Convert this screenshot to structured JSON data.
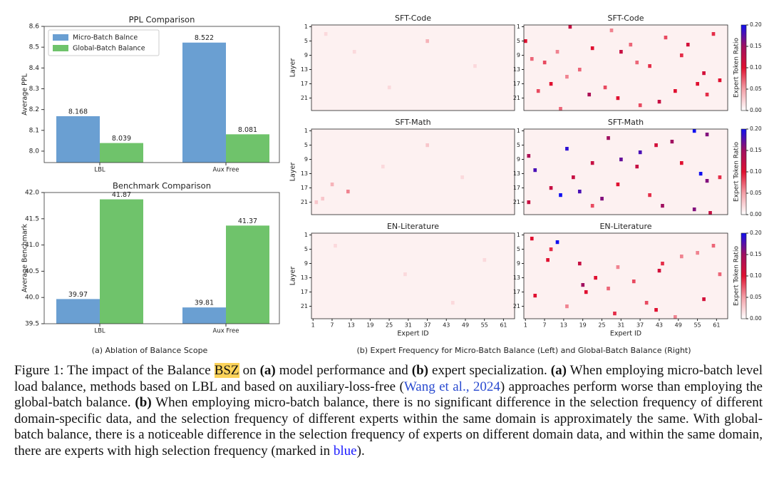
{
  "chart_data": [
    {
      "type": "bar",
      "title": "PPL Comparison",
      "ylabel": "Average PPL",
      "categories": [
        "LBL",
        "Aux Free"
      ],
      "series": [
        {
          "name": "Micro-Batch Balnce",
          "color": "#6a9fd2",
          "values": [
            8.168,
            8.522
          ]
        },
        {
          "name": "Global-Batch Balance",
          "color": "#6fc36b",
          "values": [
            8.039,
            8.081
          ]
        }
      ],
      "ylim": [
        7.945,
        8.6
      ],
      "yticks": [
        {
          "value": 8.0,
          "label": "8.0"
        },
        8.1,
        8.2,
        8.3,
        8.4,
        8.5,
        8.6
      ],
      "legend": "upper left"
    },
    {
      "type": "bar",
      "title": "Benchmark Comparison",
      "ylabel": "Average Benchmark",
      "categories": [
        "LBL",
        "Aux Free"
      ],
      "series": [
        {
          "color": "#6a9fd2",
          "values": [
            39.97,
            39.81
          ]
        },
        {
          "color": "#6fc36b",
          "values": [
            41.87,
            41.37
          ]
        }
      ],
      "ylim": [
        39.5,
        42.0
      ],
      "yticks": [
        39.5,
        {
          "value": 40.0,
          "label": "40.0"
        },
        40.5,
        {
          "value": 41.0,
          "label": "41.0"
        },
        41.5,
        {
          "value": 42.0,
          "label": "42.0"
        }
      ]
    },
    {
      "type": "heatmap",
      "title": "SFT-Code",
      "ylabel": "Layer",
      "xlim": [
        1,
        64
      ],
      "ylim": [
        1,
        24
      ],
      "yticks": [
        1,
        5,
        9,
        13,
        17,
        21
      ],
      "clim": [
        0,
        0.2
      ],
      "colors": [
        "#ffffff",
        "#f4a0a8",
        "#e01030",
        "#a01060",
        "#1010f0"
      ],
      "layers": [
        5,
        8,
        12,
        18,
        3
      ],
      "experts": [
        37,
        14,
        52,
        25,
        5
      ],
      "values": [
        0.04,
        0.02,
        0.02,
        0.02,
        0.02
      ]
    },
    {
      "type": "heatmap",
      "title": "SFT-Code",
      "xlim": [
        1,
        64
      ],
      "ylim": [
        1,
        24
      ],
      "yticks": [
        1,
        5,
        9,
        13,
        17,
        21
      ],
      "clim": [
        0,
        0.2
      ],
      "colors": [
        "#ffffff",
        "#f4a0a8",
        "#e01030",
        "#a01060",
        "#1010f0"
      ],
      "clabel": "Expert Token Ratio",
      "cticks": [
        {
          "value": 0,
          "label": "0.00"
        },
        {
          "value": 0.05,
          "label": "0.05"
        },
        {
          "value": 0.1,
          "label": "0.10"
        },
        {
          "value": 0.15,
          "label": "0.15"
        },
        {
          "value": 0.2,
          "label": "0.20"
        }
      ],
      "layers": [
        1,
        3,
        4,
        5,
        7,
        6,
        8,
        9,
        11,
        12,
        14,
        15,
        17,
        18,
        19,
        20,
        20,
        21,
        22,
        23,
        16,
        10,
        2,
        13,
        24,
        6,
        11,
        19,
        8,
        17
      ],
      "experts": [
        15,
        60,
        45,
        1,
        22,
        34,
        31,
        50,
        7,
        40,
        57,
        14,
        9,
        26,
        48,
        21,
        58,
        30,
        43,
        37,
        62,
        3,
        28,
        18,
        12,
        52,
        36,
        5,
        11,
        55
      ],
      "values": [
        0.12,
        0.09,
        0.08,
        0.1,
        0.1,
        0.07,
        0.12,
        0.09,
        0.08,
        0.09,
        0.11,
        0.06,
        0.1,
        0.08,
        0.1,
        0.14,
        0.09,
        0.1,
        0.12,
        0.08,
        0.1,
        0.07,
        0.06,
        0.07,
        0.07,
        0.11,
        0.07,
        0.08,
        0.06,
        0.1
      ]
    },
    {
      "type": "heatmap",
      "title": "SFT-Math",
      "ylabel": "Layer",
      "xlim": [
        1,
        64
      ],
      "ylim": [
        1,
        24
      ],
      "yticks": [
        1,
        5,
        9,
        13,
        17,
        21
      ],
      "clim": [
        0,
        0.2
      ],
      "colors": [
        "#ffffff",
        "#f4a0a8",
        "#e01030",
        "#a01060",
        "#1010f0"
      ],
      "layers": [
        5,
        16,
        18,
        20,
        11,
        14,
        21
      ],
      "experts": [
        37,
        7,
        12,
        4,
        23,
        48,
        2
      ],
      "values": [
        0.03,
        0.04,
        0.06,
        0.03,
        0.02,
        0.02,
        0.03
      ]
    },
    {
      "type": "heatmap",
      "title": "SFT-Math",
      "xlim": [
        1,
        64
      ],
      "ylim": [
        1,
        24
      ],
      "yticks": [
        1,
        5,
        9,
        13,
        17,
        21
      ],
      "clim": [
        0,
        0.2
      ],
      "colors": [
        "#ffffff",
        "#f4a0a8",
        "#e01030",
        "#a01060",
        "#1010f0"
      ],
      "clabel": "Expert Token Ratio",
      "cticks": [
        {
          "value": 0,
          "label": "0.00"
        },
        {
          "value": 0.05,
          "label": "0.05"
        },
        {
          "value": 0.1,
          "label": "0.10"
        },
        {
          "value": 0.15,
          "label": "0.15"
        },
        {
          "value": 0.2,
          "label": "0.20"
        }
      ],
      "layers": [
        1,
        2,
        3,
        4,
        6,
        7,
        8,
        9,
        10,
        11,
        12,
        13,
        14,
        15,
        17,
        18,
        19,
        20,
        21,
        22,
        23,
        24,
        5,
        16,
        19,
        10,
        22,
        14
      ],
      "experts": [
        54,
        58,
        27,
        47,
        14,
        37,
        2,
        31,
        22,
        36,
        4,
        56,
        16,
        58,
        9,
        18,
        12,
        25,
        2,
        44,
        54,
        59,
        42,
        30,
        40,
        50,
        22,
        62
      ],
      "values": [
        0.2,
        0.16,
        0.15,
        0.15,
        0.19,
        0.18,
        0.14,
        0.17,
        0.12,
        0.12,
        0.18,
        0.2,
        0.12,
        0.16,
        0.12,
        0.18,
        0.2,
        0.16,
        0.12,
        0.15,
        0.16,
        0.12,
        0.11,
        0.1,
        0.09,
        0.1,
        0.08,
        0.09
      ]
    },
    {
      "type": "heatmap",
      "title": "EN-Literature",
      "ylabel": "Layer",
      "xlabel": "Expert ID",
      "xlim": [
        1,
        64
      ],
      "ylim": [
        1,
        24
      ],
      "yticks": [
        1,
        5,
        9,
        13,
        17,
        21
      ],
      "xticks": [
        1,
        7,
        13,
        19,
        25,
        31,
        37,
        43,
        49,
        55,
        61
      ],
      "clim": [
        0,
        0.2
      ],
      "colors": [
        "#ffffff",
        "#f4a0a8",
        "#e01030",
        "#a01060",
        "#1010f0"
      ],
      "layers": [
        4,
        12,
        20,
        8
      ],
      "experts": [
        8,
        30,
        45,
        55
      ],
      "values": [
        0.02,
        0.02,
        0.02,
        0.02
      ]
    },
    {
      "type": "heatmap",
      "title": "EN-Literature",
      "xlabel": "Expert ID",
      "xlim": [
        1,
        64
      ],
      "ylim": [
        1,
        24
      ],
      "yticks": [
        1,
        5,
        9,
        13,
        17,
        21
      ],
      "xticks": [
        1,
        7,
        13,
        19,
        25,
        31,
        37,
        43,
        49,
        55,
        61
      ],
      "clim": [
        0,
        0.2
      ],
      "colors": [
        "#ffffff",
        "#f4a0a8",
        "#e01030",
        "#a01060",
        "#1010f0"
      ],
      "clabel": "Expert Token Ratio",
      "cticks": [
        {
          "value": 0,
          "label": "0.00"
        },
        {
          "value": 0.05,
          "label": "0.05"
        },
        {
          "value": 0.1,
          "label": "0.10"
        },
        {
          "value": 0.15,
          "label": "0.15"
        },
        {
          "value": 0.2,
          "label": "0.20"
        }
      ],
      "layers": [
        3,
        2,
        5,
        8,
        9,
        9,
        11,
        13,
        14,
        15,
        17,
        18,
        19,
        20,
        22,
        23,
        7,
        12,
        16,
        6,
        10,
        21,
        4,
        24
      ],
      "experts": [
        11,
        3,
        9,
        8,
        44,
        18,
        43,
        23,
        35,
        19,
        20,
        4,
        57,
        39,
        42,
        29,
        50,
        62,
        27,
        55,
        30,
        14,
        60,
        48
      ],
      "values": [
        0.2,
        0.1,
        0.09,
        0.1,
        0.09,
        0.12,
        0.11,
        0.1,
        0.08,
        0.15,
        0.1,
        0.1,
        0.11,
        0.08,
        0.1,
        0.09,
        0.06,
        0.07,
        0.07,
        0.06,
        0.06,
        0.06,
        0.07,
        0.06
      ]
    }
  ],
  "panel_captions": [
    "(a) Ablation of Balance Scope",
    "(b) Expert Frequency for Micro-Batch Balance (Left) and Global-Batch Balance (Right)"
  ],
  "figure_caption": [
    {
      "text": "Figure 1:",
      "style": "plain"
    },
    {
      "text": " The impact of the Balance ",
      "style": "plain"
    },
    {
      "text": "BSZ",
      "style": "highlight"
    },
    {
      "text": " on ",
      "style": "plain"
    },
    {
      "text": "(a)",
      "style": "bold"
    },
    {
      "text": " model performance and ",
      "style": "plain"
    },
    {
      "text": "(b)",
      "style": "bold"
    },
    {
      "text": " expert specialization. ",
      "style": "plain"
    },
    {
      "text": "(a)",
      "style": "bold"
    },
    {
      "text": " When employing micro-batch level load balance, methods based on LBL and based on auxiliary-loss-free (",
      "style": "plain"
    },
    {
      "text": "Wang et al., 2024",
      "style": "link"
    },
    {
      "text": ") approaches perform worse than employing the global-batch balance. ",
      "style": "plain"
    },
    {
      "text": "(b)",
      "style": "bold"
    },
    {
      "text": " When employing micro-batch balance, there is no significant difference in the selection frequency of different domain-specific data, and the selection frequency of different experts within the same domain is approximately the same. With global-batch balance, there is a noticeable difference in the selection frequency of experts on different domain data, and within the same domain, there are experts with high selection frequency (marked in ",
      "style": "plain"
    },
    {
      "text": "blue",
      "style": "blue"
    },
    {
      "text": ").",
      "style": "plain"
    }
  ]
}
